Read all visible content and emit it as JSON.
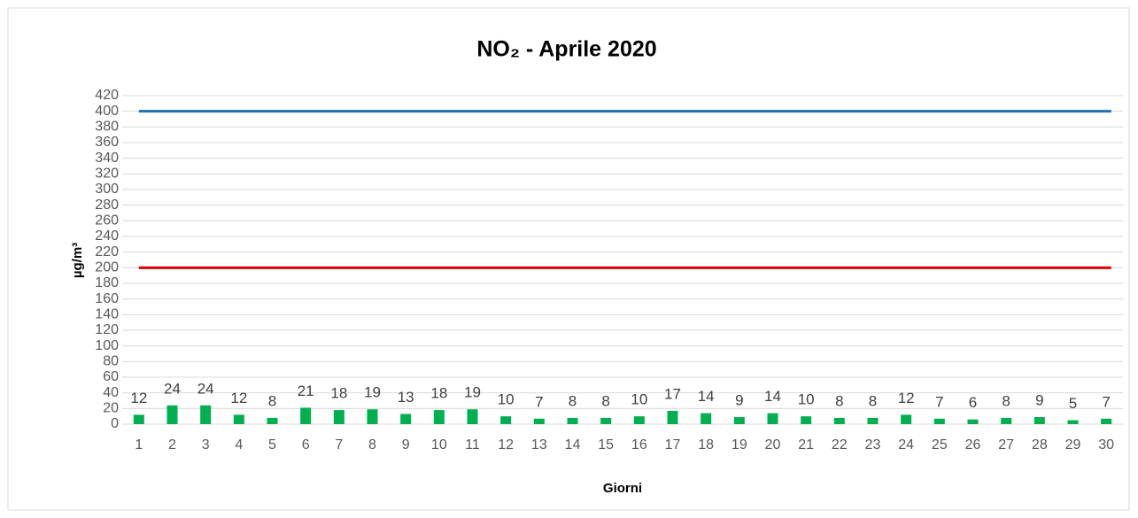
{
  "chart_data": {
    "type": "bar",
    "title": "NO₂ - Aprile 2020",
    "y_label": "µg/m³",
    "x_label": "Giorni",
    "categories": [
      "1",
      "2",
      "3",
      "4",
      "5",
      "6",
      "7",
      "8",
      "9",
      "10",
      "11",
      "12",
      "13",
      "14",
      "15",
      "16",
      "17",
      "18",
      "19",
      "20",
      "21",
      "22",
      "23",
      "24",
      "25",
      "26",
      "27",
      "28",
      "29",
      "30"
    ],
    "values": [
      12,
      24,
      24,
      12,
      8,
      21,
      18,
      19,
      13,
      18,
      19,
      10,
      7,
      8,
      8,
      10,
      17,
      14,
      9,
      14,
      10,
      8,
      8,
      12,
      7,
      6,
      8,
      9,
      5,
      7
    ],
    "color": "#00b050",
    "reference_lines": [
      {
        "value": 400,
        "color": "#1f6fb5"
      },
      {
        "value": 200,
        "color": "#e00000"
      }
    ],
    "ylim": [
      0,
      420
    ],
    "yticks": [
      0,
      20,
      40,
      60,
      80,
      100,
      120,
      140,
      160,
      180,
      200,
      220,
      240,
      260,
      280,
      300,
      320,
      340,
      360,
      380,
      400,
      420
    ],
    "grid": true
  }
}
